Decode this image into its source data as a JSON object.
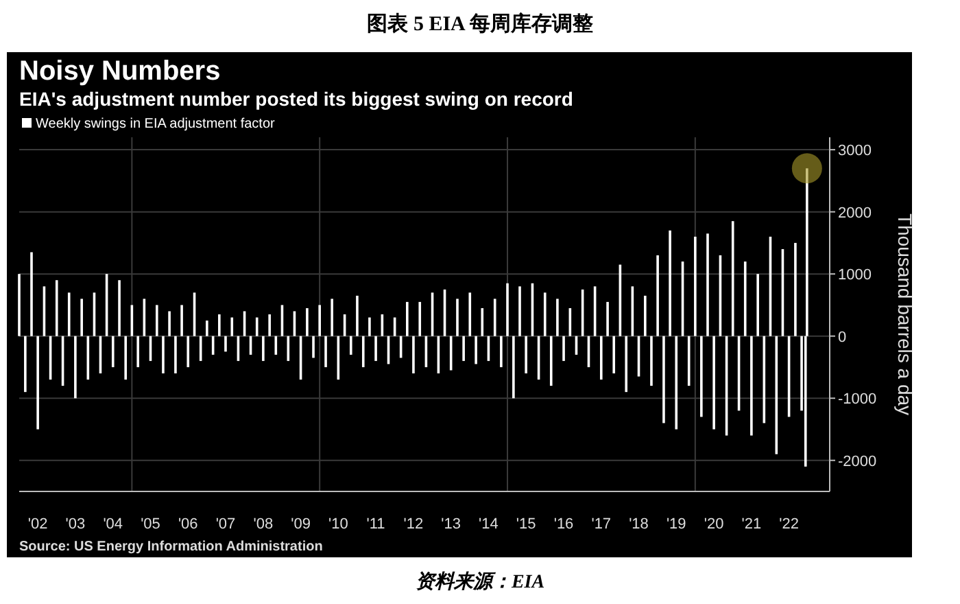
{
  "chart_data": {
    "type": "bar",
    "title": "Noisy Numbers",
    "subtitle": "EIA's adjustment number posted its biggest swing on record",
    "ylabel": "Thousand barrels a day",
    "annotations": [
      "图表 5 EIA 每周库存调整",
      "Source: US Energy Information Administration",
      "资料来源：EIA"
    ],
    "x": [
      "2002-01",
      "2002-03",
      "2002-05",
      "2002-07",
      "2002-09",
      "2002-11",
      "2003-01",
      "2003-03",
      "2003-05",
      "2003-07",
      "2003-09",
      "2003-11",
      "2004-01",
      "2004-03",
      "2004-05",
      "2004-07",
      "2004-09",
      "2004-11",
      "2005-01",
      "2005-03",
      "2005-05",
      "2005-07",
      "2005-09",
      "2005-11",
      "2006-01",
      "2006-03",
      "2006-05",
      "2006-07",
      "2006-09",
      "2006-11",
      "2007-01",
      "2007-03",
      "2007-05",
      "2007-07",
      "2007-09",
      "2007-11",
      "2008-01",
      "2008-03",
      "2008-05",
      "2008-07",
      "2008-09",
      "2008-11",
      "2009-01",
      "2009-03",
      "2009-05",
      "2009-07",
      "2009-09",
      "2009-11",
      "2010-01",
      "2010-03",
      "2010-05",
      "2010-07",
      "2010-09",
      "2010-11",
      "2011-01",
      "2011-03",
      "2011-05",
      "2011-07",
      "2011-09",
      "2011-11",
      "2012-01",
      "2012-03",
      "2012-05",
      "2012-07",
      "2012-09",
      "2012-11",
      "2013-01",
      "2013-03",
      "2013-05",
      "2013-07",
      "2013-09",
      "2013-11",
      "2014-01",
      "2014-03",
      "2014-05",
      "2014-07",
      "2014-09",
      "2014-11",
      "2015-01",
      "2015-03",
      "2015-05",
      "2015-07",
      "2015-09",
      "2015-11",
      "2016-01",
      "2016-03",
      "2016-05",
      "2016-07",
      "2016-09",
      "2016-11",
      "2017-01",
      "2017-03",
      "2017-05",
      "2017-07",
      "2017-09",
      "2017-11",
      "2018-01",
      "2018-03",
      "2018-05",
      "2018-07",
      "2018-09",
      "2018-11",
      "2019-01",
      "2019-03",
      "2019-05",
      "2019-07",
      "2019-09",
      "2019-11",
      "2020-01",
      "2020-03",
      "2020-05",
      "2020-07",
      "2020-09",
      "2020-11",
      "2021-01",
      "2021-03",
      "2021-05",
      "2021-07",
      "2021-09",
      "2021-11",
      "2022-01",
      "2022-03",
      "2022-05",
      "2022-07",
      "2022-09",
      "2022-11",
      "2022-12-09",
      "2022-12-23"
    ],
    "series": [
      {
        "name": "Weekly swings in EIA adjustment factor",
        "color": "#ffffff",
        "values": [
          1000,
          -900,
          1350,
          -1500,
          800,
          -700,
          900,
          -800,
          700,
          -1000,
          600,
          -700,
          700,
          -600,
          1000,
          -500,
          900,
          -700,
          500,
          -500,
          600,
          -400,
          500,
          -600,
          400,
          -600,
          500,
          -500,
          700,
          -400,
          250,
          -300,
          350,
          -250,
          300,
          -400,
          400,
          -300,
          300,
          -400,
          350,
          -300,
          500,
          -400,
          400,
          -700,
          450,
          -350,
          500,
          -500,
          600,
          -700,
          350,
          -300,
          650,
          -500,
          300,
          -400,
          350,
          -450,
          300,
          -350,
          550,
          -600,
          550,
          -500,
          700,
          -600,
          750,
          -550,
          600,
          -400,
          700,
          -450,
          450,
          -400,
          600,
          -500,
          850,
          -1000,
          800,
          -600,
          850,
          -700,
          700,
          -800,
          600,
          -400,
          450,
          -300,
          750,
          -500,
          800,
          -700,
          550,
          -600,
          1150,
          -900,
          800,
          -650,
          650,
          -800,
          1300,
          -1400,
          1700,
          -1500,
          1200,
          -800,
          1600,
          -1300,
          1650,
          -1500,
          1300,
          -1600,
          1850,
          -1200,
          1200,
          -1600,
          1000,
          -1400,
          1600,
          -1900,
          1400,
          -1300,
          1500,
          -1200,
          -2100,
          2700
        ]
      },
      {
        "type": "scatter",
        "color": "#a89a2a",
        "x": [
          "2022-12-23"
        ],
        "values": [
          2700
        ]
      }
    ],
    "marker": "circle",
    "xlim": [
      "2002-01",
      "2023-08"
    ],
    "xticks": [
      {
        "value": "2002-07",
        "label": "'02"
      },
      {
        "value": "2003-07",
        "label": "'03"
      },
      {
        "value": "2004-07",
        "label": "'04"
      },
      {
        "value": "2005-01",
        "label": null
      },
      {
        "value": "2005-07",
        "label": "'05"
      },
      {
        "value": "2006-07",
        "label": "'06"
      },
      {
        "value": "2007-07",
        "label": "'07"
      },
      {
        "value": "2008-07",
        "label": "'08"
      },
      {
        "value": "2009-07",
        "label": "'09"
      },
      {
        "value": "2010-01",
        "label": null
      },
      {
        "value": "2010-07",
        "label": "'10"
      },
      {
        "value": "2011-07",
        "label": "'11"
      },
      {
        "value": "2012-07",
        "label": "'12"
      },
      {
        "value": "2013-07",
        "label": "'13"
      },
      {
        "value": "2014-07",
        "label": "'14"
      },
      {
        "value": "2015-01",
        "label": null
      },
      {
        "value": "2015-07",
        "label": "'15"
      },
      {
        "value": "2016-07",
        "label": "'16"
      },
      {
        "value": "2017-07",
        "label": "'17"
      },
      {
        "value": "2018-07",
        "label": "'18"
      },
      {
        "value": "2019-07",
        "label": "'19"
      },
      {
        "value": "2020-01",
        "label": null
      },
      {
        "value": "2020-07",
        "label": "'20"
      },
      {
        "value": "2021-07",
        "label": "'21"
      },
      {
        "value": "2022-07",
        "label": "'22"
      }
    ],
    "ylim": [
      -2500,
      3200
    ],
    "yticks": [
      -2000,
      -1000,
      0,
      1000,
      2000,
      3000
    ],
    "grid": true,
    "legend": "top left"
  }
}
